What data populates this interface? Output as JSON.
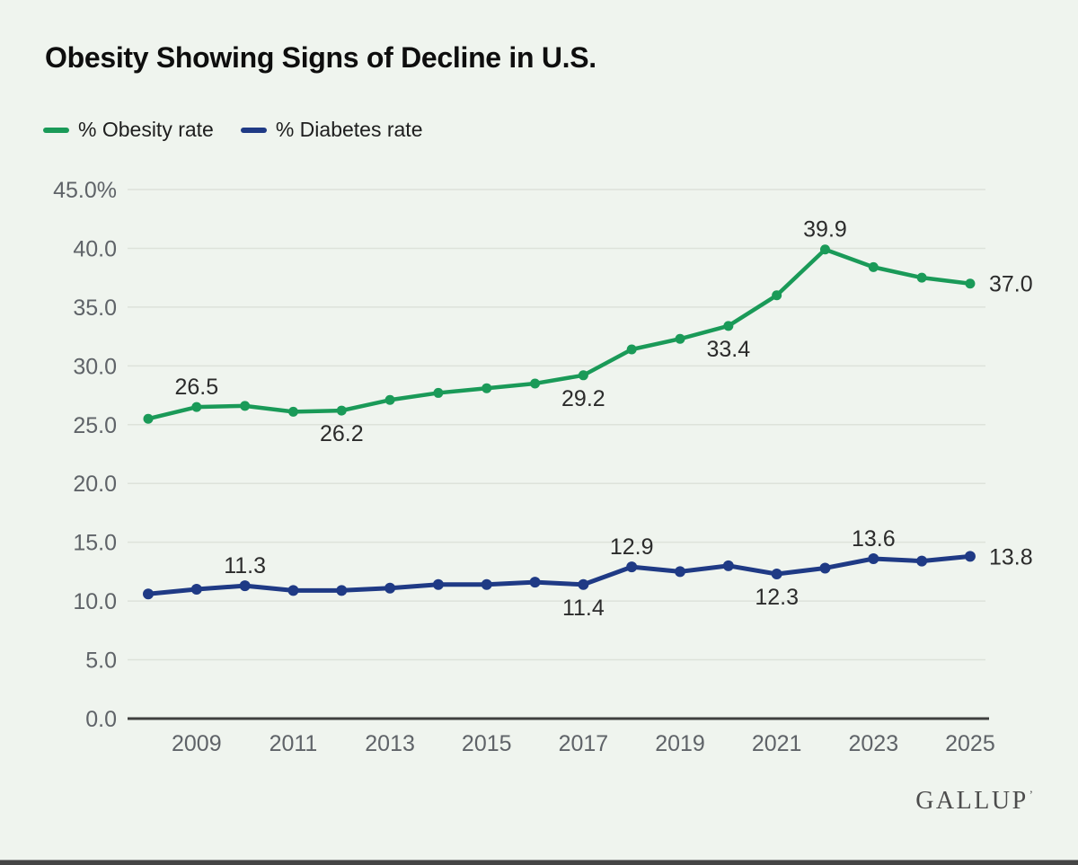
{
  "page": {
    "background": "#eff4ee"
  },
  "header": {
    "title": "Obesity Showing Signs of Decline in U.S."
  },
  "legend": [
    {
      "label": "% Obesity rate",
      "color": "#1a9a58"
    },
    {
      "label": "% Diabetes rate",
      "color": "#1f3a85"
    }
  ],
  "footer": {
    "brand": "GALLUP",
    "brand_mark": "’"
  },
  "colors": {
    "grid": "#dde2da",
    "axis": "#3f3f3f",
    "tick_text": "#5f6368",
    "label_text": "#2b2b2b"
  },
  "chart_data": {
    "type": "line",
    "title": "Obesity Showing Signs of Decline in U.S.",
    "x": [
      2008,
      2009,
      2010,
      2011,
      2012,
      2013,
      2014,
      2015,
      2016,
      2017,
      2018,
      2019,
      2020,
      2021,
      2022,
      2023,
      2024,
      2025
    ],
    "x_tick_labels": [
      "2009",
      "2011",
      "2013",
      "2015",
      "2017",
      "2019",
      "2021",
      "2023",
      "2025"
    ],
    "ylim": [
      0,
      45
    ],
    "grid": true,
    "legend_position": "top-left",
    "y_ticks": [
      {
        "value": 45,
        "label": "45.0%"
      },
      {
        "value": 40,
        "label": "40.0"
      },
      {
        "value": 35,
        "label": "35.0"
      },
      {
        "value": 30,
        "label": "30.0"
      },
      {
        "value": 25,
        "label": "25.0"
      },
      {
        "value": 20,
        "label": "20.0"
      },
      {
        "value": 15,
        "label": "15.0"
      },
      {
        "value": 10,
        "label": "10.0"
      },
      {
        "value": 5,
        "label": "5.0"
      },
      {
        "value": 0,
        "label": "0.0"
      }
    ],
    "series": [
      {
        "name": "% Obesity rate",
        "color": "#1a9a58",
        "values": [
          25.5,
          26.5,
          26.6,
          26.1,
          26.2,
          27.1,
          27.7,
          28.1,
          28.5,
          29.2,
          31.4,
          32.3,
          33.4,
          36.0,
          39.9,
          38.4,
          37.5,
          37.0
        ]
      },
      {
        "name": "% Diabetes rate",
        "color": "#1f3a85",
        "values": [
          10.6,
          11.0,
          11.3,
          10.9,
          10.9,
          11.1,
          11.4,
          11.4,
          11.6,
          11.4,
          12.9,
          12.5,
          13.0,
          12.3,
          12.8,
          13.6,
          13.4,
          13.8
        ]
      }
    ],
    "annotations": [
      {
        "series": 0,
        "year": 2009,
        "text": "26.5",
        "placement": "above"
      },
      {
        "series": 0,
        "year": 2012,
        "text": "26.2",
        "placement": "below"
      },
      {
        "series": 0,
        "year": 2017,
        "text": "29.2",
        "placement": "below"
      },
      {
        "series": 0,
        "year": 2020,
        "text": "33.4",
        "placement": "below"
      },
      {
        "series": 0,
        "year": 2022,
        "text": "39.9",
        "placement": "above"
      },
      {
        "series": 0,
        "year": 2025,
        "text": "37.0",
        "placement": "right"
      },
      {
        "series": 1,
        "year": 2010,
        "text": "11.3",
        "placement": "above"
      },
      {
        "series": 1,
        "year": 2017,
        "text": "11.4",
        "placement": "below"
      },
      {
        "series": 1,
        "year": 2018,
        "text": "12.9",
        "placement": "above"
      },
      {
        "series": 1,
        "year": 2021,
        "text": "12.3",
        "placement": "below"
      },
      {
        "series": 1,
        "year": 2023,
        "text": "13.6",
        "placement": "above"
      },
      {
        "series": 1,
        "year": 2025,
        "text": "13.8",
        "placement": "right"
      }
    ]
  }
}
